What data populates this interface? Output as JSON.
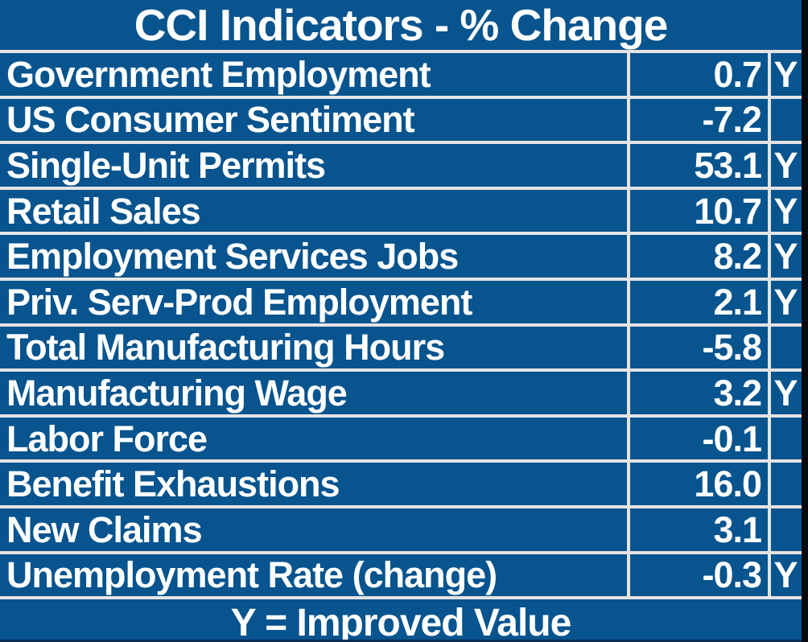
{
  "title": "CCI Indicators - % Change",
  "footer": "Y = Improved Value",
  "rows": [
    {
      "label": "Government Employment",
      "value": "0.7",
      "improved": "Y"
    },
    {
      "label": "US Consumer Sentiment",
      "value": "-7.2",
      "improved": ""
    },
    {
      "label": "Single-Unit Permits",
      "value": "53.1",
      "improved": "Y"
    },
    {
      "label": "Retail Sales",
      "value": "10.7",
      "improved": "Y"
    },
    {
      "label": "Employment Services Jobs",
      "value": "8.2",
      "improved": "Y"
    },
    {
      "label": "Priv. Serv-Prod Employment",
      "value": "2.1",
      "improved": "Y"
    },
    {
      "label": "Total Manufacturing Hours",
      "value": "-5.8",
      "improved": ""
    },
    {
      "label": "Manufacturing Wage",
      "value": "3.2",
      "improved": "Y"
    },
    {
      "label": "Labor Force",
      "value": "-0.1",
      "improved": ""
    },
    {
      "label": "Benefit Exhaustions",
      "value": "16.0",
      "improved": ""
    },
    {
      "label": "New Claims",
      "value": "3.1",
      "improved": ""
    },
    {
      "label": "Unemployment Rate (change)",
      "value": "-0.3",
      "improved": "Y"
    }
  ],
  "colors": {
    "background": "#07548e",
    "grid_line": "#e4e4e4",
    "text": "#ffffff",
    "right_edge_strip": "#080a10",
    "bottom_edge_strip": "#0a2e52"
  },
  "chart_data": {
    "type": "table",
    "title": "CCI Indicators - % Change",
    "fields": [
      "indicator",
      "percent_change",
      "improved_flag"
    ],
    "rows": [
      [
        "Government Employment",
        0.7,
        "Y"
      ],
      [
        "US Consumer Sentiment",
        -7.2,
        ""
      ],
      [
        "Single-Unit Permits",
        53.1,
        "Y"
      ],
      [
        "Retail Sales",
        10.7,
        "Y"
      ],
      [
        "Employment Services Jobs",
        8.2,
        "Y"
      ],
      [
        "Priv. Serv-Prod Employment",
        2.1,
        "Y"
      ],
      [
        "Total Manufacturing Hours",
        -5.8,
        ""
      ],
      [
        "Manufacturing Wage",
        3.2,
        "Y"
      ],
      [
        "Labor Force",
        -0.1,
        ""
      ],
      [
        "Benefit Exhaustions",
        16.0,
        ""
      ],
      [
        "New Claims",
        3.1,
        ""
      ],
      [
        "Unemployment Rate (change)",
        -0.3,
        "Y"
      ]
    ],
    "legend": "Y = Improved Value"
  }
}
